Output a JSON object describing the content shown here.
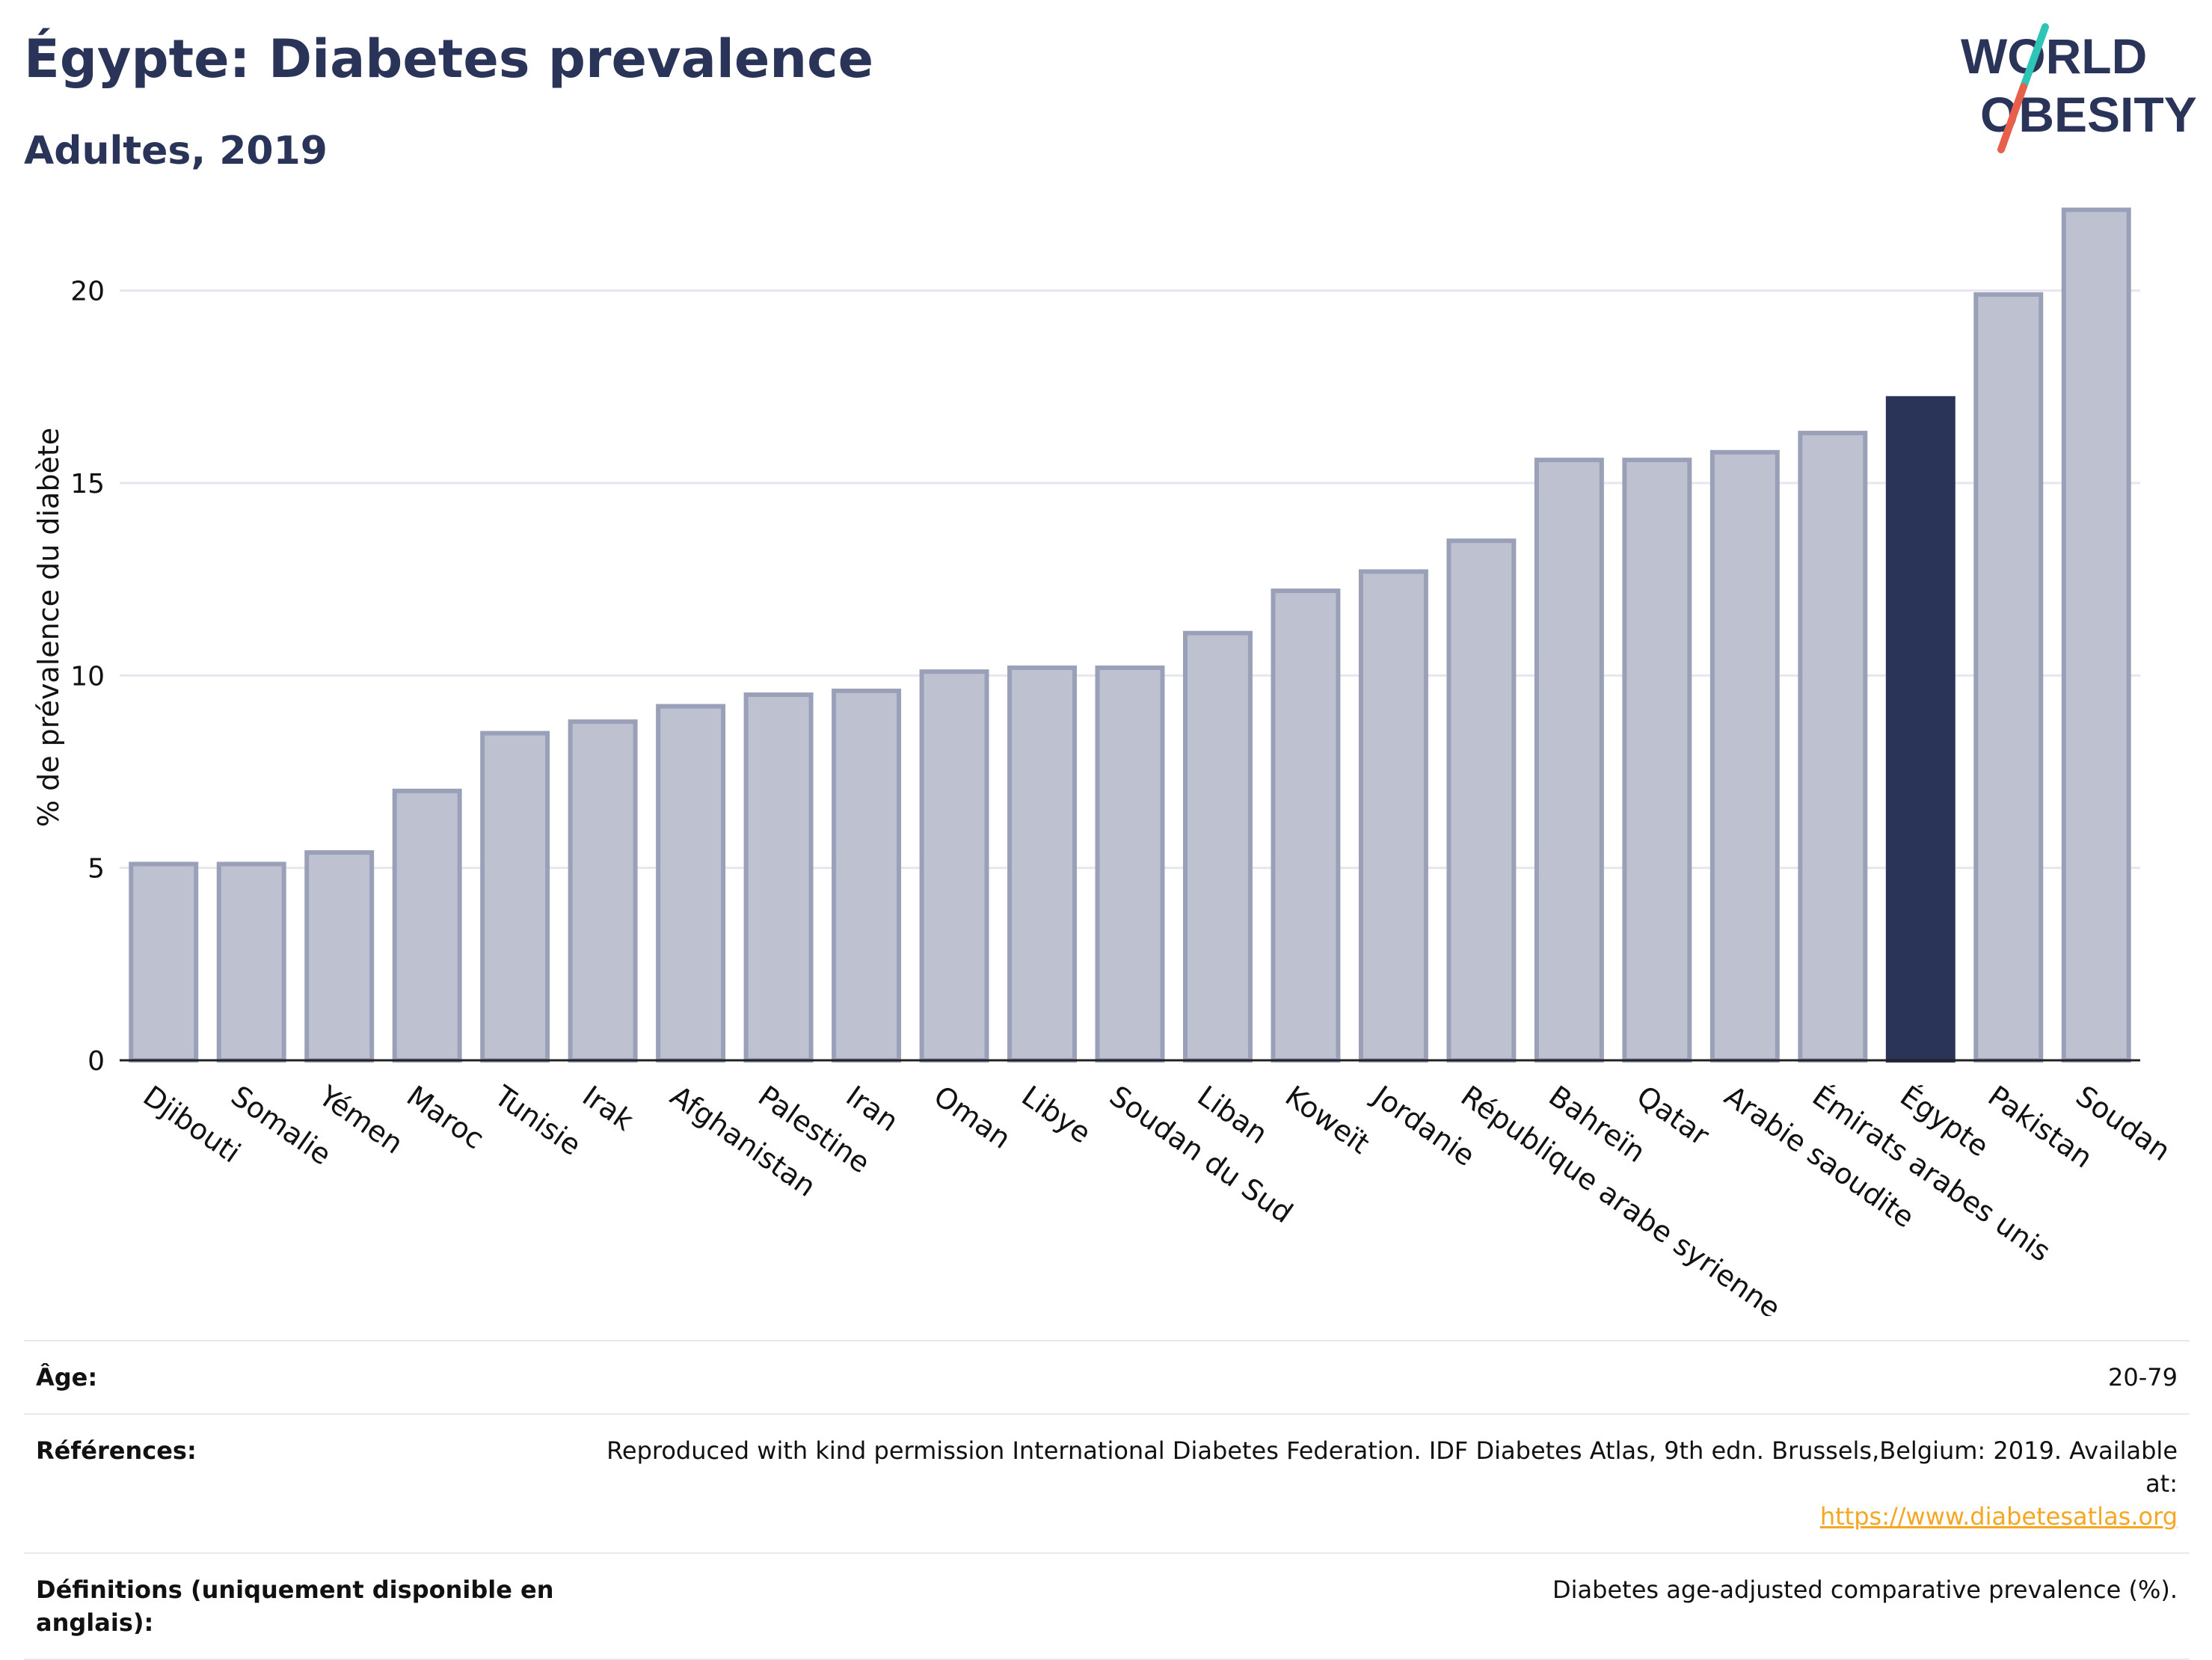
{
  "header": {
    "title": "Égypte: Diabetes prevalence",
    "subtitle": "Adultes, 2019"
  },
  "logo": {
    "line1": "WORLD",
    "line2": "OBESITY",
    "accent_color": "#2ec4b6",
    "accent_color_2": "#e8604c"
  },
  "colors": {
    "bar": "#bec2d0",
    "bar_border": "#9aa0b8",
    "highlight": "#2a3459",
    "text": "#2a3459"
  },
  "chart_data": {
    "type": "bar",
    "ylabel": "% de prévalence du diabète",
    "ylim": [
      0,
      22.5
    ],
    "yticks": [
      0,
      5,
      10,
      15,
      20
    ],
    "grid": true,
    "highlight": "Égypte",
    "categories": [
      "Djibouti",
      "Somalie",
      "Yémen",
      "Maroc",
      "Tunisie",
      "Irak",
      "Afghanistan",
      "Palestine",
      "Iran",
      "Oman",
      "Libye",
      "Soudan du Sud",
      "Liban",
      "Koweït",
      "Jordanie",
      "République arabe syrienne",
      "Bahreïn",
      "Qatar",
      "Arabie saoudite",
      "Émirats arabes unis",
      "Égypte",
      "Pakistan",
      "Soudan"
    ],
    "values": [
      5.1,
      5.1,
      5.4,
      7.0,
      8.5,
      8.8,
      9.2,
      9.5,
      9.6,
      10.1,
      10.2,
      10.2,
      11.1,
      12.2,
      12.7,
      13.5,
      15.6,
      15.6,
      15.8,
      16.3,
      17.2,
      19.9,
      22.1
    ]
  },
  "info": {
    "age_label": "Âge:",
    "age_value": "20-79",
    "ref_label": "Références:",
    "ref_text": "Reproduced with kind permission International Diabetes Federation. IDF Diabetes Atlas, 9th edn. Brussels,Belgium: 2019. Available at:",
    "ref_link": "https://www.diabetesatlas.org",
    "def_label": "Définitions (uniquement disponible en anglais):",
    "def_value": "Diabetes age-adjusted comparative prevalence (%)."
  }
}
